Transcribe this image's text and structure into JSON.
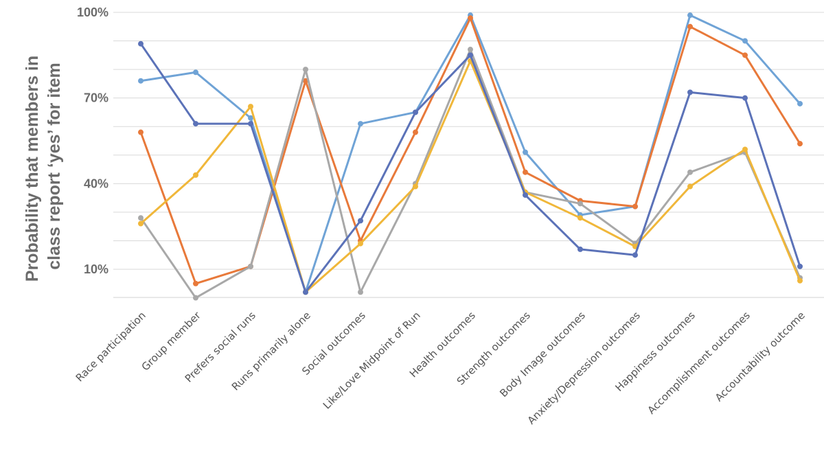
{
  "chart_data": {
    "type": "line",
    "title": "",
    "ylabel_lines": [
      "Probability that members in",
      "class report ‘yes’ for item"
    ],
    "xlabel": "",
    "ylim": [
      0,
      100
    ],
    "yticks": [
      {
        "value": 10,
        "label": "10%"
      },
      {
        "value": 40,
        "label": "40%"
      },
      {
        "value": 70,
        "label": "70%"
      },
      {
        "value": 100,
        "label": "100%"
      }
    ],
    "grid": true,
    "legend": "none",
    "categories": [
      "Race participation",
      "Group member",
      "Prefers social runs",
      "Runs primarily alone",
      "Social outcomes",
      "Like/Love Midpoint of Run",
      "Health outcomes",
      "Strength outcomes",
      "Body Image outcomes",
      "Anxiety/Depression outcomes",
      "Happiness outcomes",
      "Accomplishment outcomes",
      "Accountability outcome"
    ],
    "series": [
      {
        "color": "#6fa3d6",
        "values": [
          76,
          79,
          63,
          2,
          61,
          65,
          99,
          51,
          29,
          32,
          99,
          90,
          68
        ]
      },
      {
        "color": "#e8793a",
        "values": [
          58,
          5,
          11,
          76,
          20,
          58,
          98,
          44,
          34,
          32,
          95,
          85,
          54
        ]
      },
      {
        "color": "#a8a8a8",
        "values": [
          28,
          0,
          11,
          80,
          2,
          40,
          87,
          37,
          33,
          19,
          44,
          51,
          7
        ]
      },
      {
        "color": "#f0b73a",
        "values": [
          26,
          43,
          67,
          2,
          19,
          39,
          83,
          37,
          28,
          18,
          39,
          52,
          6
        ]
      },
      {
        "color": "#5b72b8",
        "values": [
          89,
          61,
          61,
          2,
          27,
          65,
          85,
          36,
          17,
          15,
          72,
          70,
          11
        ]
      }
    ]
  }
}
